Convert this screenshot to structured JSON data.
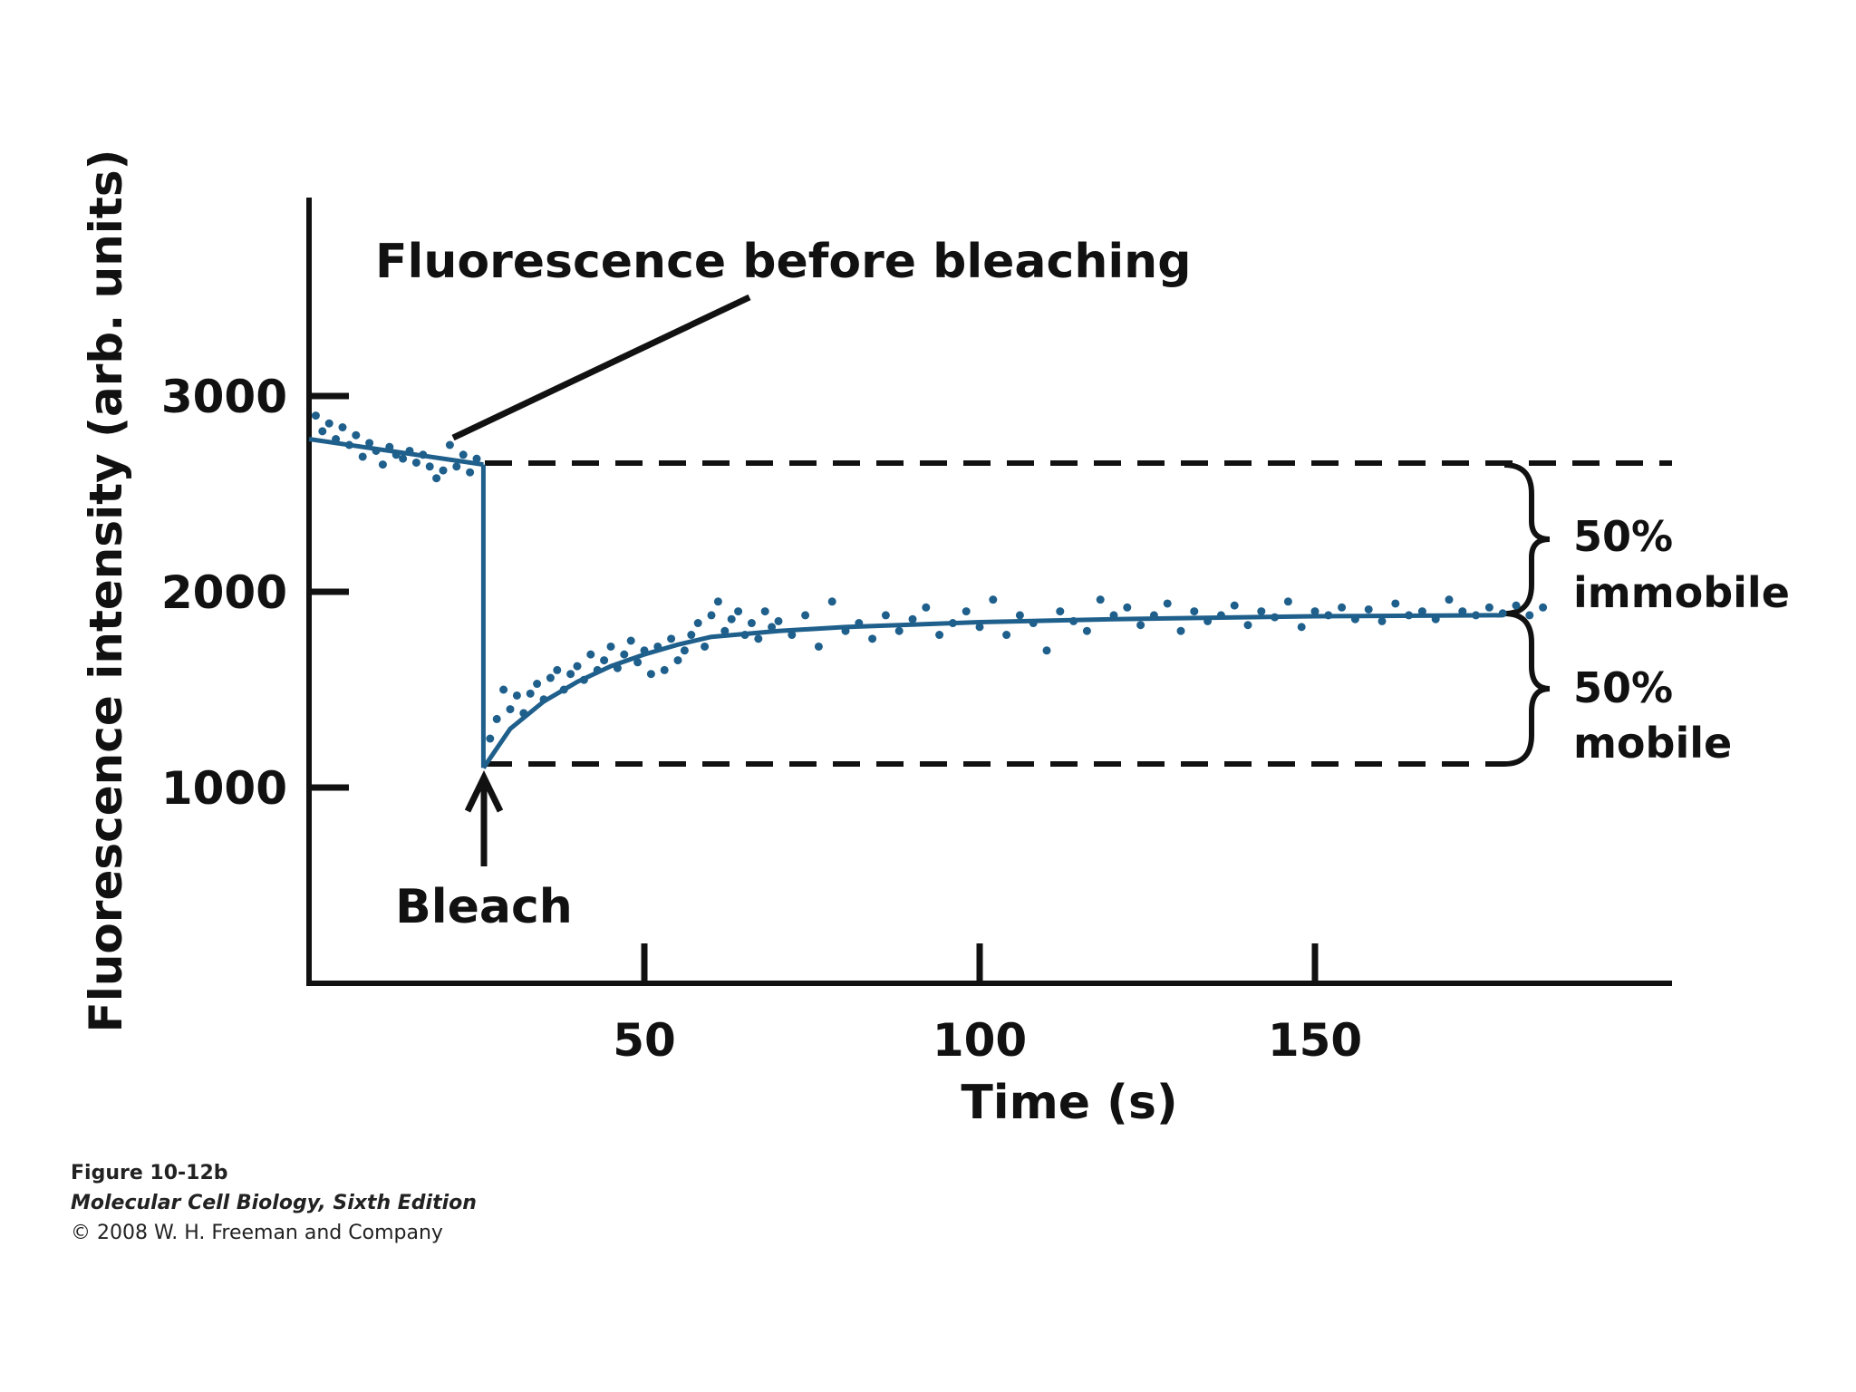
{
  "chart_data": {
    "type": "scatter",
    "title": "",
    "xlabel": "Time (s)",
    "ylabel": "Fluorescence intensity (arb. units)",
    "xlim": [
      0,
      200
    ],
    "ylim": [
      0,
      4000
    ],
    "x_ticks": [
      50,
      100,
      150
    ],
    "x_tick_labels": [
      "50",
      "100",
      "150"
    ],
    "y_ticks": [
      1000,
      2000,
      3000
    ],
    "y_tick_labels": [
      "1000",
      "2000",
      "3000"
    ],
    "grid": false,
    "colors": {
      "data": "#1f5f8b",
      "axis": "#111111"
    },
    "bleach_time": 26,
    "pre_bleach_level": 2650,
    "post_bleach_minimum": 1100,
    "recovery_plateau": 1880,
    "pre_bleach_fit": {
      "x": [
        0,
        26
      ],
      "y": [
        2780,
        2650
      ]
    },
    "recovery_fit": {
      "x": [
        26,
        30,
        35,
        40,
        45,
        50,
        55,
        60,
        70,
        80,
        100,
        120,
        150,
        178
      ],
      "y": [
        1100,
        1300,
        1440,
        1540,
        1620,
        1680,
        1730,
        1770,
        1800,
        1820,
        1845,
        1860,
        1875,
        1880
      ]
    },
    "series": [
      {
        "x": [
          1,
          2,
          3,
          4,
          5,
          6,
          7,
          8,
          9,
          10,
          11,
          12,
          13,
          14,
          15,
          16,
          17,
          18,
          19,
          20,
          21,
          22,
          23,
          24,
          25,
          27,
          28,
          29,
          30,
          31,
          32,
          33,
          34,
          35,
          36,
          37,
          38,
          39,
          40,
          41,
          42,
          43,
          44,
          45,
          46,
          47,
          48,
          49,
          50,
          51,
          52,
          53,
          54,
          55,
          56,
          57,
          58,
          59,
          60,
          61,
          62,
          63,
          64,
          65,
          66,
          67,
          68,
          69,
          70,
          72,
          74,
          76,
          78,
          80,
          82,
          84,
          86,
          88,
          90,
          92,
          94,
          96,
          98,
          100,
          102,
          104,
          106,
          108,
          110,
          112,
          114,
          116,
          118,
          120,
          122,
          124,
          126,
          128,
          130,
          132,
          134,
          136,
          138,
          140,
          142,
          144,
          146,
          148,
          150,
          152,
          154,
          156,
          158,
          160,
          162,
          164,
          166,
          168,
          170,
          172,
          174,
          176,
          178,
          180,
          182,
          184
        ],
        "y": [
          2900,
          2820,
          2860,
          2780,
          2840,
          2750,
          2800,
          2690,
          2760,
          2720,
          2650,
          2740,
          2700,
          2680,
          2720,
          2660,
          2700,
          2640,
          2580,
          2620,
          2750,
          2640,
          2700,
          2610,
          2680,
          1250,
          1350,
          1500,
          1400,
          1470,
          1380,
          1480,
          1530,
          1450,
          1560,
          1600,
          1500,
          1580,
          1620,
          1550,
          1680,
          1600,
          1650,
          1720,
          1610,
          1680,
          1750,
          1640,
          1700,
          1580,
          1720,
          1600,
          1760,
          1650,
          1700,
          1780,
          1840,
          1720,
          1880,
          1950,
          1800,
          1860,
          1900,
          1780,
          1840,
          1760,
          1900,
          1820,
          1850,
          1780,
          1880,
          1720,
          1950,
          1800,
          1840,
          1760,
          1880,
          1800,
          1860,
          1920,
          1780,
          1840,
          1900,
          1820,
          1960,
          1780,
          1880,
          1840,
          1700,
          1900,
          1850,
          1800,
          1960,
          1880,
          1920,
          1830,
          1880,
          1940,
          1800,
          1900,
          1850,
          1880,
          1930,
          1830,
          1900,
          1870,
          1950,
          1820,
          1900,
          1880,
          1920,
          1860,
          1910,
          1850,
          1940,
          1880,
          1900,
          1860,
          1960,
          1900,
          1880,
          1920,
          1890,
          1930,
          1880,
          1920
        ]
      }
    ],
    "annotations": [
      "Fluorescence before bleaching",
      "Bleach",
      "50%",
      "immobile",
      "50%",
      "mobile"
    ]
  },
  "caption": {
    "figure": "Figure 10-12b",
    "book": "Molecular Cell Biology, Sixth Edition",
    "copyright": "© 2008 W. H. Freeman and Company"
  }
}
